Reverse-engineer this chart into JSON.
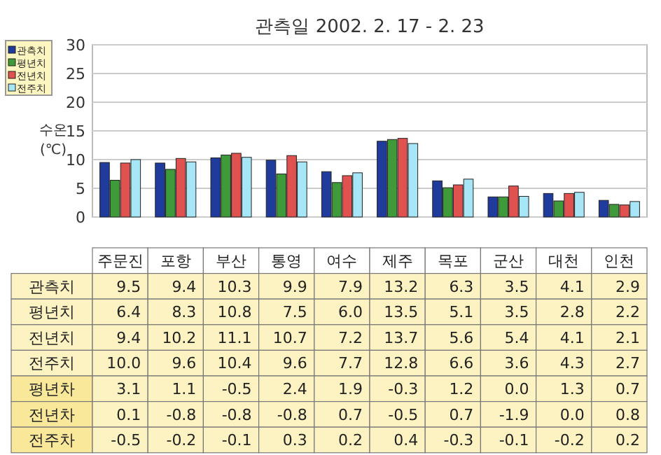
{
  "chart_data": [
    {
      "type": "bar",
      "title": "관측일 2002. 2. 17 - 2. 23",
      "ylabel": "수온(℃)",
      "categories": [
        null,
        null,
        null,
        null,
        null,
        null,
        null,
        null,
        null,
        null
      ],
      "ylim": [
        0,
        30
      ],
      "yticks": [
        0,
        5,
        10,
        15,
        20,
        25,
        30
      ],
      "grid": "y",
      "legend": "top left",
      "series": [
        {
          "name": "관측치",
          "color": "#1f3c9c",
          "values": [
            9.5,
            9.4,
            10.3,
            9.9,
            7.9,
            13.2,
            6.3,
            3.5,
            4.1,
            2.9
          ]
        },
        {
          "name": "평년치",
          "color": "#3f9a3a",
          "values": [
            6.4,
            8.3,
            10.8,
            7.5,
            6.0,
            13.5,
            5.1,
            3.5,
            2.8,
            2.2
          ]
        },
        {
          "name": "전년치",
          "color": "#e0524f",
          "values": [
            9.4,
            10.2,
            11.1,
            10.7,
            7.2,
            13.7,
            5.6,
            5.4,
            4.1,
            2.1
          ]
        },
        {
          "name": "전주치",
          "color": "#a6e6f6",
          "values": [
            10.0,
            9.6,
            10.4,
            9.6,
            7.7,
            12.8,
            6.6,
            3.6,
            4.3,
            2.7
          ]
        }
      ]
    },
    {
      "type": "other",
      "categories": [
        "주문진",
        "포항",
        "부산",
        "통영",
        "여수",
        "제주",
        "목포",
        "군산",
        "대천",
        "인천"
      ],
      "series": [
        {
          "name": "관측치",
          "values": [
            9.5,
            9.4,
            10.3,
            9.9,
            7.9,
            13.2,
            6.3,
            3.5,
            4.1,
            2.9
          ],
          "value_labels": [
            "9.5",
            "9.4",
            "10.3",
            "9.9",
            "7.9",
            "13.2",
            "6.3",
            "3.5",
            "4.1",
            "2.9"
          ]
        },
        {
          "name": "평년치",
          "values": [
            6.4,
            8.3,
            10.8,
            7.5,
            6.0,
            13.5,
            5.1,
            3.5,
            2.8,
            2.2
          ],
          "value_labels": [
            "6.4",
            "8.3",
            "10.8",
            "7.5",
            "6.0",
            "13.5",
            "5.1",
            "3.5",
            "2.8",
            "2.2"
          ]
        },
        {
          "name": "전년치",
          "values": [
            9.4,
            10.2,
            11.1,
            10.7,
            7.2,
            13.7,
            5.6,
            5.4,
            4.1,
            2.1
          ],
          "value_labels": [
            "9.4",
            "10.2",
            "11.1",
            "10.7",
            "7.2",
            "13.7",
            "5.6",
            "5.4",
            "4.1",
            "2.1"
          ]
        },
        {
          "name": "전주치",
          "values": [
            10.0,
            9.6,
            10.4,
            9.6,
            7.7,
            12.8,
            6.6,
            3.6,
            4.3,
            2.7
          ],
          "value_labels": [
            "10.0",
            "9.6",
            "10.4",
            "9.6",
            "7.7",
            "12.8",
            "6.6",
            "3.6",
            "4.3",
            "2.7"
          ]
        },
        {
          "name": "평년차",
          "values": [
            3.1,
            1.1,
            -0.5,
            2.4,
            1.9,
            -0.3,
            1.2,
            0.0,
            1.3,
            0.7
          ],
          "value_labels": [
            "3.1",
            "1.1",
            "-0.5",
            "2.4",
            "1.9",
            "-0.3",
            "1.2",
            "0.0",
            "1.3",
            "0.7"
          ]
        },
        {
          "name": "전년차",
          "values": [
            0.1,
            -0.8,
            -0.8,
            -0.8,
            0.7,
            -0.5,
            0.7,
            -1.9,
            0.0,
            0.8
          ],
          "value_labels": [
            "0.1",
            "-0.8",
            "-0.8",
            "-0.8",
            "0.7",
            "-0.5",
            "0.7",
            "-1.9",
            "0.0",
            "0.8"
          ]
        },
        {
          "name": "전주차",
          "values": [
            -0.5,
            -0.2,
            -0.1,
            0.3,
            0.2,
            0.4,
            -0.3,
            -0.1,
            -0.2,
            0.2
          ],
          "value_labels": [
            "-0.5",
            "-0.2",
            "-0.1",
            "0.3",
            "0.2",
            "0.4",
            "-0.3",
            "-0.1",
            "-0.2",
            "0.2"
          ]
        }
      ]
    }
  ]
}
